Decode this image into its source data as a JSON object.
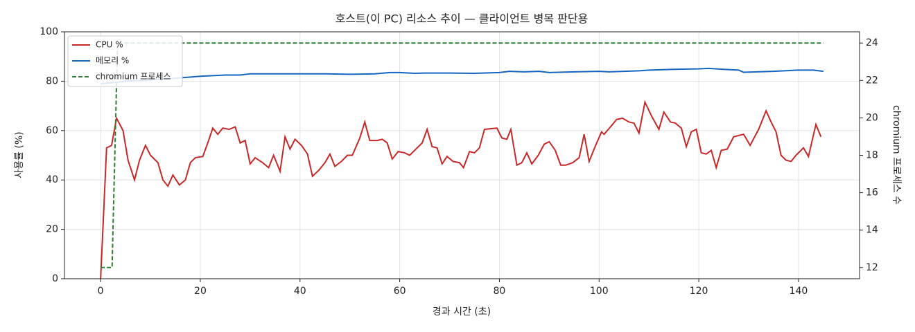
{
  "chart_data": {
    "type": "line",
    "title": "호스트(이 PC) 리소스 추이 — 클라이언트 병목 판단용",
    "x_label": "경과 시간 (초)",
    "y_label": "사용률 (%)",
    "y2_label": "chromium 프로세스 수",
    "xlim": [
      -7.25,
      152.25
    ],
    "xticks": [
      0,
      20,
      40,
      60,
      80,
      100,
      120,
      140
    ],
    "ylim": [
      0,
      100
    ],
    "yticks": [
      0,
      20,
      40,
      60,
      80,
      100
    ],
    "y2lim": [
      11.4,
      24.6
    ],
    "y2ticks": [
      12,
      14,
      16,
      18,
      20,
      22,
      24
    ],
    "grid": true,
    "legend": "upper left",
    "series": [
      {
        "name": "CPU %",
        "color": "#c62828",
        "style": "solid",
        "x": [
          0,
          1.2,
          2.2,
          3.2,
          4.5,
          5.5,
          6.8,
          7.8,
          9,
          10,
          11.5,
          12.5,
          13.5,
          14.5,
          15.8,
          17,
          18,
          19,
          20.5,
          21.5,
          22.5,
          23.5,
          24.5,
          25.8,
          27,
          28,
          29,
          30,
          31,
          32.5,
          33.7,
          34.7,
          36,
          37,
          38,
          39,
          40.3,
          41.5,
          42.5,
          43.8,
          45,
          46,
          47,
          48.3,
          49.5,
          50.5,
          52,
          53,
          54,
          55.5,
          56.5,
          57.5,
          58.5,
          59.7,
          61,
          62,
          63.5,
          64.5,
          65.5,
          66.5,
          67.5,
          68.5,
          69.5,
          70.7,
          72,
          72.8,
          74,
          75,
          76,
          77,
          79.5,
          80.5,
          81.5,
          82.3,
          83.5,
          84.5,
          85.5,
          86.5,
          87.8,
          89,
          90,
          91.2,
          92.3,
          93.3,
          94.7,
          96,
          97,
          98,
          99.3,
          100.5,
          101,
          102.5,
          103.5,
          104.7,
          106,
          107,
          108,
          109.2,
          110.5,
          112,
          113,
          114.3,
          115.3,
          116.5,
          117.5,
          118.5,
          119.5,
          120.5,
          121.5,
          122.5,
          123.5,
          124.5,
          125.7,
          127,
          128,
          129,
          130.3,
          132,
          133.5,
          134.5,
          135.5,
          136.5,
          137.5,
          138.5,
          139.5,
          141,
          142,
          143.5,
          144.5
        ],
        "values": [
          0,
          53,
          54,
          65,
          60,
          48,
          40,
          48,
          54,
          50,
          47,
          40,
          37.5,
          42,
          38,
          40,
          47,
          49,
          49.5,
          55,
          61,
          58.5,
          61,
          60.5,
          61.5,
          55,
          56,
          46.5,
          49,
          47,
          45,
          50,
          43.5,
          57.5,
          52.5,
          56.5,
          54,
          50.5,
          41.5,
          44,
          47,
          50.5,
          45.5,
          47.5,
          50,
          50,
          57,
          63.5,
          56,
          56,
          56.5,
          55,
          48.5,
          51.5,
          51,
          50,
          53,
          55,
          60.5,
          53.5,
          53,
          46.5,
          49.5,
          47.5,
          47,
          45,
          51.5,
          51,
          53,
          60.5,
          61,
          57,
          56.5,
          60.5,
          46,
          47,
          51,
          46.5,
          50,
          54.5,
          55.5,
          52,
          46,
          46,
          47,
          49,
          58.5,
          47.5,
          54,
          59.5,
          58.5,
          62,
          64.5,
          65,
          63.5,
          63,
          59,
          71.5,
          66,
          60.5,
          67.5,
          63.5,
          63,
          61,
          53.5,
          59.5,
          60.5,
          51,
          50.5,
          52,
          45,
          52,
          52.5,
          57.5,
          58,
          58.5,
          54,
          60.5,
          68,
          63.5,
          59.5,
          50,
          48,
          47.5,
          50,
          53,
          49.5,
          62.5,
          57.5
        ]
      },
      {
        "name": "메모리 %",
        "color": "#1565c0",
        "style": "solid",
        "x": [
          0,
          3,
          5,
          10,
          17,
          20,
          25,
          28,
          30,
          35,
          40,
          45,
          50,
          55,
          58,
          60,
          63,
          65,
          70,
          75,
          80,
          82,
          85,
          88,
          90,
          95,
          100,
          102,
          105,
          108,
          110,
          115,
          120,
          122,
          125,
          128,
          129,
          130,
          135,
          140,
          143,
          145
        ],
        "values": [
          79,
          79.5,
          80,
          80.5,
          81.5,
          82,
          82.5,
          82.5,
          83,
          83,
          83,
          83,
          82.8,
          83,
          83.5,
          83.5,
          83.2,
          83.3,
          83.3,
          83.2,
          83.5,
          84,
          83.8,
          84,
          83.5,
          83.8,
          84,
          83.8,
          84,
          84.2,
          84.5,
          84.8,
          85,
          85.2,
          84.8,
          84.5,
          83.6,
          83.7,
          84,
          84.5,
          84.5,
          84
        ]
      },
      {
        "name": "chromium 프로세스",
        "color": "#2e7d32",
        "style": "dashed",
        "axis": "y2",
        "x": [
          0,
          2.3,
          3.4,
          145
        ],
        "values": [
          12,
          12,
          24,
          24
        ]
      }
    ]
  }
}
